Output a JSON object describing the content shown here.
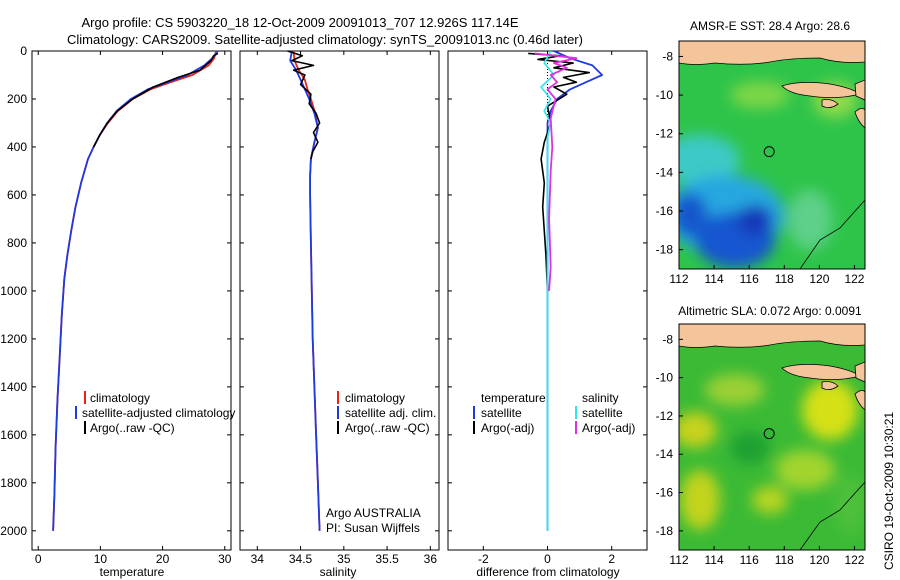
{
  "title_line1": "Argo profile: CS 5903220_18 12-Oct-2009 20091013_707 12.926S 117.14E",
  "title_line2": "Climatology: CARS2009. Satellite-adjusted climatology: synTS_20091013.nc (0.46d later)",
  "side_label": "CSIRO 19-Oct-2009 10:30:21",
  "colors": {
    "red": "#e8231c",
    "blue": "#1f3ae0",
    "black": "#000000",
    "cyan": "#33e6ee",
    "magenta": "#e030e0",
    "land": "#f4c49a"
  },
  "chart_data": [
    {
      "type": "line",
      "name": "temperature",
      "xlabel": "temperature",
      "ylabel": "",
      "xlim": [
        -1,
        31
      ],
      "ylim": [
        2080,
        0
      ],
      "xticks": [
        0,
        10,
        20,
        30
      ],
      "yticks": [
        0,
        200,
        400,
        600,
        800,
        1000,
        1200,
        1400,
        1600,
        1800,
        2000
      ],
      "legend": [
        {
          "label": "climatology",
          "color": "red"
        },
        {
          "label": "satellite-adjusted climatology",
          "color": "blue"
        },
        {
          "label": "Argo(..raw -QC)",
          "color": "black"
        }
      ],
      "series": [
        {
          "name": "climatology",
          "color": "red",
          "x": [
            28.6,
            28.3,
            27.4,
            24.8,
            21.3,
            18.0,
            15.2,
            12.8,
            11.2,
            9.9,
            8.9,
            8.0,
            6.9,
            6.0,
            5.3,
            4.7,
            4.2,
            3.8,
            3.5,
            3.1,
            2.8,
            2.6,
            2.4
          ],
          "y": [
            0,
            30,
            60,
            100,
            130,
            160,
            200,
            250,
            300,
            350,
            400,
            450,
            550,
            650,
            750,
            850,
            950,
            1100,
            1250,
            1450,
            1650,
            1850,
            2000
          ]
        },
        {
          "name": "satellite-adjusted climatology",
          "color": "blue",
          "x": [
            28.9,
            28.0,
            26.7,
            24.0,
            20.8,
            17.6,
            14.9,
            12.6,
            11.1,
            9.9,
            8.9,
            8.0,
            6.9,
            6.0,
            5.3,
            4.7,
            4.2,
            3.8,
            3.5,
            3.1,
            2.8,
            2.6,
            2.4
          ],
          "y": [
            0,
            30,
            60,
            100,
            130,
            160,
            200,
            250,
            300,
            350,
            400,
            450,
            550,
            650,
            750,
            850,
            950,
            1100,
            1250,
            1450,
            1650,
            1850,
            2000
          ]
        },
        {
          "name": "Argo(..raw -QC)",
          "color": "black",
          "x": [
            28.9,
            28.2,
            27.8,
            26.0,
            22.5,
            18.5,
            15.2,
            12.7,
            11.1,
            9.9,
            8.9
          ],
          "y": [
            10,
            20,
            40,
            80,
            110,
            150,
            200,
            250,
            300,
            350,
            400
          ]
        }
      ]
    },
    {
      "type": "line",
      "name": "salinity",
      "xlabel": "salinity",
      "ylabel": "",
      "xlim": [
        33.8,
        36.1
      ],
      "ylim": [
        2080,
        0
      ],
      "xticks": [
        34,
        34.5,
        35,
        35.5,
        36
      ],
      "yticks": [
        0,
        200,
        400,
        600,
        800,
        1000,
        1200,
        1400,
        1600,
        1800,
        2000
      ],
      "legend": [
        {
          "label": "climatology",
          "color": "red"
        },
        {
          "label": "satellite adj. clim.",
          "color": "blue"
        },
        {
          "label": "Argo(..raw -QC)",
          "color": "black"
        }
      ],
      "annotation": [
        "Argo AUSTRALIA",
        "PI: Susan Wijffels"
      ],
      "series": [
        {
          "name": "climatology",
          "color": "red",
          "x": [
            34.42,
            34.43,
            34.48,
            34.55,
            34.58,
            34.62,
            34.67,
            34.7,
            34.66,
            34.62,
            34.61,
            34.61,
            34.62,
            34.63,
            34.64,
            34.66,
            34.68,
            34.7,
            34.72
          ],
          "y": [
            0,
            40,
            80,
            120,
            160,
            200,
            260,
            320,
            380,
            450,
            520,
            600,
            800,
            1000,
            1200,
            1400,
            1600,
            1800,
            2000
          ]
        },
        {
          "name": "satellite adj. clim.",
          "color": "blue",
          "x": [
            34.4,
            34.38,
            34.45,
            34.5,
            34.55,
            34.6,
            34.66,
            34.7,
            34.66,
            34.62,
            34.61,
            34.61,
            34.62,
            34.63,
            34.64,
            34.66,
            34.68,
            34.7,
            34.72
          ],
          "y": [
            0,
            40,
            80,
            120,
            160,
            200,
            260,
            320,
            380,
            450,
            520,
            600,
            800,
            1000,
            1200,
            1400,
            1600,
            1800,
            2000
          ]
        },
        {
          "name": "Argo(..raw -QC)",
          "color": "black",
          "x": [
            34.35,
            34.52,
            34.4,
            34.65,
            34.42,
            34.55,
            34.5,
            34.62,
            34.6,
            34.68,
            34.72,
            34.65,
            34.7,
            34.64,
            34.62
          ],
          "y": [
            0,
            20,
            40,
            60,
            80,
            100,
            140,
            180,
            220,
            260,
            300,
            340,
            380,
            420,
            450
          ]
        }
      ]
    },
    {
      "type": "line",
      "name": "difference",
      "xlabel": "difference from climatology",
      "ylabel": "",
      "xlim": [
        -3.1,
        3.1
      ],
      "ylim": [
        2080,
        0
      ],
      "xticks": [
        -2,
        0,
        2
      ],
      "yticks": [
        0,
        200,
        400,
        600,
        800,
        1000,
        1200,
        1400,
        1600,
        1800,
        2000
      ],
      "legend_left_title": "temperature",
      "legend_right_title": "salinity",
      "legend_left": [
        {
          "label": "satellite",
          "color": "blue"
        },
        {
          "label": "Argo(-adj)",
          "color": "black"
        }
      ],
      "legend_right": [
        {
          "label": "satellite",
          "color": "cyan"
        },
        {
          "label": "Argo(-adj)",
          "color": "magenta"
        }
      ],
      "series": [
        {
          "name": "temperature satellite",
          "color": "blue",
          "x": [
            0.2,
            0.7,
            1.4,
            1.7,
            1.2,
            0.7,
            0.3,
            0.1,
            0.0,
            0.0,
            0.0,
            0.0,
            0.0
          ],
          "y": [
            0,
            30,
            60,
            100,
            130,
            160,
            200,
            250,
            300,
            400,
            600,
            1000,
            2000
          ]
        },
        {
          "name": "temperature Argo(-adj)",
          "color": "black",
          "x": [
            -0.6,
            0.4,
            -0.3,
            0.8,
            0.2,
            1.3,
            0.5,
            0.9,
            0.2,
            0.6,
            0.0,
            0.1,
            -0.1,
            -0.2,
            -0.15,
            -0.1,
            -0.15,
            -0.1,
            -0.05,
            0.0
          ],
          "y": [
            10,
            20,
            35,
            50,
            70,
            90,
            110,
            130,
            150,
            180,
            230,
            300,
            380,
            450,
            500,
            550,
            650,
            750,
            850,
            1000
          ]
        },
        {
          "name": "salinity satellite",
          "color": "cyan",
          "x": [
            0.1,
            -0.1,
            0.2,
            -0.2,
            0.1,
            -0.1,
            0.1,
            0.0,
            0.0,
            0.0,
            0.0
          ],
          "y": [
            0,
            50,
            100,
            150,
            200,
            250,
            300,
            360,
            500,
            1000,
            2000
          ]
        },
        {
          "name": "salinity Argo(-adj)",
          "color": "magenta",
          "x": [
            -0.4,
            0.9,
            0.2,
            0.6,
            0.1,
            0.3,
            0.0,
            0.25,
            0.1,
            0.15,
            0.1,
            0.05,
            0.1,
            0.05
          ],
          "y": [
            10,
            30,
            50,
            70,
            100,
            130,
            160,
            200,
            280,
            400,
            500,
            700,
            900,
            1000
          ]
        }
      ]
    },
    {
      "type": "heatmap",
      "name": "sst_map",
      "title": "AMSR-E SST: 28.4 Argo: 28.6",
      "xlim": [
        112,
        122.6
      ],
      "ylim": [
        -19,
        -7.2
      ],
      "xticks": [
        112,
        114,
        116,
        118,
        120,
        122
      ],
      "yticks": [
        -8,
        -10,
        -12,
        -14,
        -16,
        -18
      ],
      "marker": {
        "lon": 117.14,
        "lat": -12.926
      }
    },
    {
      "type": "heatmap",
      "name": "sla_map",
      "title": "Altimetric SLA: 0.072 Argo: 0.0091",
      "xlim": [
        112,
        122.6
      ],
      "ylim": [
        -19,
        -7.2
      ],
      "xticks": [
        112,
        114,
        116,
        118,
        120,
        122
      ],
      "yticks": [
        -8,
        -10,
        -12,
        -14,
        -16,
        -18
      ],
      "marker": {
        "lon": 117.14,
        "lat": -12.926
      }
    }
  ]
}
